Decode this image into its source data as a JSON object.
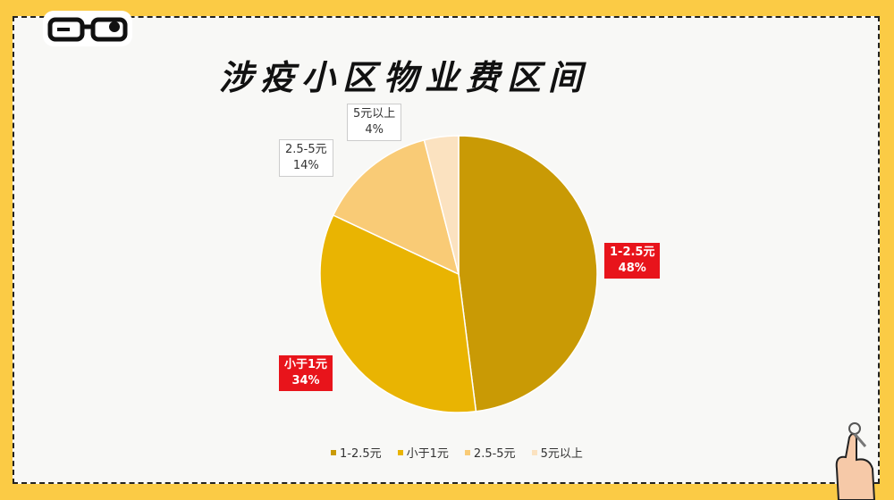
{
  "chart_data": {
    "type": "pie",
    "title": "涉疫小区物业费区间",
    "start": "12 o'clock, clockwise",
    "legend_position": "bottom",
    "slices": [
      {
        "label": "1-2.5元",
        "value": 48,
        "value_label": "48%",
        "color": "#C99A05",
        "label_style": "red"
      },
      {
        "label": "小于1元",
        "value": 34,
        "value_label": "34%",
        "color": "#E9B402",
        "label_style": "red"
      },
      {
        "label": "2.5-5元",
        "value": 14,
        "value_label": "14%",
        "color": "#F9CB76",
        "label_style": "white"
      },
      {
        "label": "5元以上",
        "value": 4,
        "value_label": "4%",
        "color": "#FBE2C0",
        "label_style": "white"
      }
    ]
  },
  "colors": {
    "background": "#FBCB45",
    "panel": "#F8F8F6",
    "callout_red": "#E8141B"
  }
}
